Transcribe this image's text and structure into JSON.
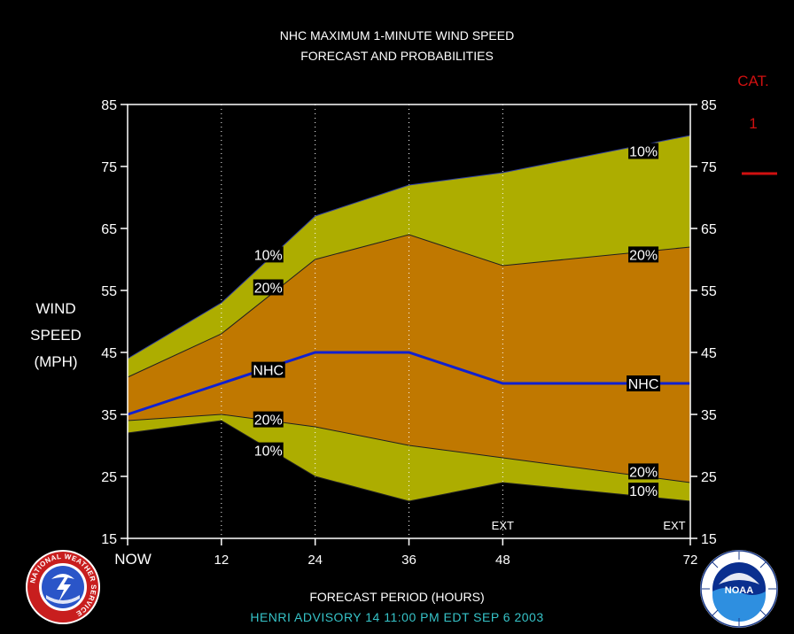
{
  "title_line1": "NHC MAXIMUM 1-MINUTE WIND SPEED",
  "title_line2": "FORECAST AND PROBABILITIES",
  "ylabel_lines": [
    "WIND",
    "SPEED",
    "(MPH)"
  ],
  "xlabel": "FORECAST PERIOD (HOURS)",
  "advisory": "HENRI   ADVISORY  14 11:00 PM EDT SEP 6 2003",
  "category": {
    "label": "CAT.",
    "value": "1",
    "color": "#d01010"
  },
  "colors": {
    "outer_band": "#adad00",
    "inner_band": "#c07800",
    "nhc_line": "#1020d0",
    "boundary_line": "#202020",
    "frame": "#ffffff",
    "background": "#000000"
  },
  "logos": {
    "left": {
      "icon": "nws-logo-icon",
      "text": "NATIONAL WEATHER SERVICE"
    },
    "right": {
      "icon": "noaa-logo-icon",
      "text": "NOAA"
    }
  },
  "chart_data": {
    "type": "area",
    "x": [
      0,
      12,
      24,
      36,
      48,
      72
    ],
    "x_tick_labels": [
      "NOW",
      "12",
      "24",
      "36",
      "48",
      "72"
    ],
    "xlim": [
      0,
      72
    ],
    "ylim": [
      15,
      85
    ],
    "y_ticks": [
      15,
      25,
      35,
      45,
      55,
      65,
      75,
      85
    ],
    "ext_labels": [
      {
        "x": 48,
        "text": "EXT"
      },
      {
        "x": 72,
        "text": "EXT"
      }
    ],
    "series": [
      {
        "label": "10%",
        "role": "upper_10",
        "x": [
          0,
          12,
          24,
          36,
          48,
          72
        ],
        "values": [
          44,
          53,
          67,
          72,
          74,
          80
        ]
      },
      {
        "label": "20%",
        "role": "upper_20",
        "x": [
          0,
          12,
          24,
          36,
          48,
          72
        ],
        "values": [
          41,
          48,
          60,
          64,
          59,
          62
        ]
      },
      {
        "label": "NHC",
        "role": "nhc",
        "x": [
          0,
          12,
          24,
          36,
          48,
          72
        ],
        "values": [
          35,
          40,
          45,
          45,
          40,
          40
        ]
      },
      {
        "label": "20%",
        "role": "lower_20",
        "x": [
          0,
          12,
          24,
          36,
          48,
          72
        ],
        "values": [
          34,
          35,
          33,
          30,
          28,
          24
        ]
      },
      {
        "label": "10%",
        "role": "lower_10",
        "x": [
          0,
          12,
          24,
          36,
          48,
          72
        ],
        "values": [
          32,
          34,
          25,
          21,
          24,
          21
        ]
      }
    ],
    "annotations": [
      {
        "text": "10%",
        "x": 18,
        "y": 60.8
      },
      {
        "text": "20%",
        "x": 18,
        "y": 55.5
      },
      {
        "text": "NHC",
        "x": 18,
        "y": 42.2
      },
      {
        "text": "20%",
        "x": 18,
        "y": 34.2
      },
      {
        "text": "10%",
        "x": 18,
        "y": 29.2
      },
      {
        "text": "10%",
        "x": 66,
        "y": 77.5
      },
      {
        "text": "20%",
        "x": 66,
        "y": 60.8
      },
      {
        "text": "NHC",
        "x": 66,
        "y": 40.0
      },
      {
        "text": "20%",
        "x": 66,
        "y": 25.8
      },
      {
        "text": "10%",
        "x": 66,
        "y": 22.7
      }
    ]
  }
}
